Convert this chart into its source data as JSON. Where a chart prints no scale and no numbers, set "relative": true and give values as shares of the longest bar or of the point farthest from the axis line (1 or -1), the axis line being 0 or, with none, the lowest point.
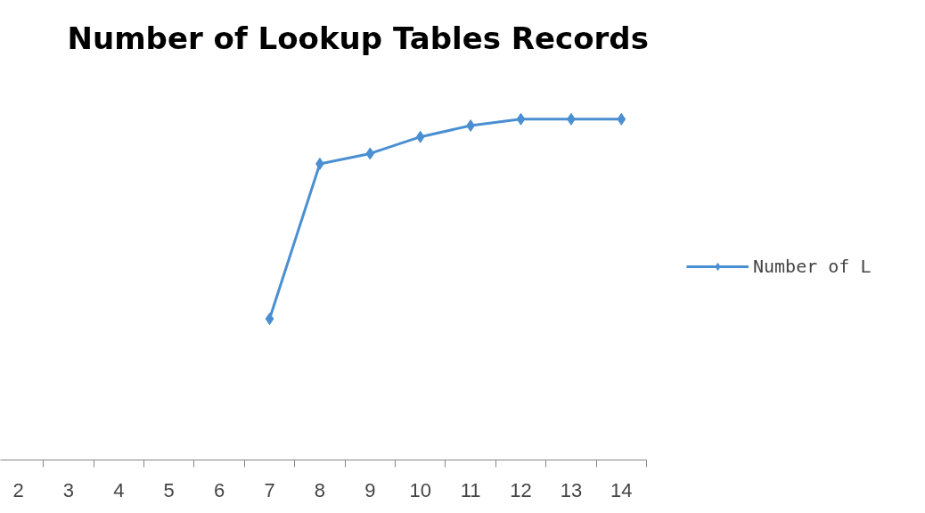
{
  "chart_data": {
    "type": "line",
    "title": "Number of Lookup Tables Records",
    "categories": [
      "2",
      "3",
      "4",
      "5",
      "6",
      "7",
      "8",
      "9",
      "10",
      "11",
      "12",
      "13",
      "14"
    ],
    "series": [
      {
        "name": "Number of L",
        "color": "#4a8fd1",
        "values": [
          null,
          null,
          null,
          null,
          null,
          0.414,
          0.869,
          0.899,
          0.948,
          0.981,
          1,
          1,
          1
        ]
      }
    ],
    "relative": true,
    "legend": "right",
    "marker": "diamond",
    "line_style": "solid"
  }
}
